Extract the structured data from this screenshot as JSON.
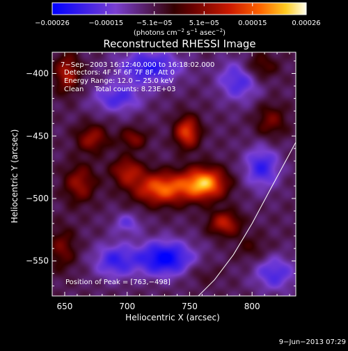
{
  "chart_data": {
    "type": "heatmap",
    "title": "Reconstructed RHESSI Image",
    "xlabel": "Heliocentric X (arcsec)",
    "ylabel": "Heliocentric Y (arcsec)",
    "xlim": [
      640,
      835
    ],
    "ylim": [
      -578,
      -383
    ],
    "x_ticks": [
      650,
      700,
      750,
      800
    ],
    "y_ticks": [
      -400,
      -450,
      -500,
      -550
    ],
    "x_tick_labels": [
      "650",
      "700",
      "750",
      "800"
    ],
    "y_tick_labels": [
      "−400",
      "−450",
      "−500",
      "−550"
    ],
    "colorbar": {
      "min": -0.00026,
      "max": 0.00026,
      "ticks": [
        -0.00026,
        -0.00015,
        -5.1e-05,
        5.1e-05,
        0.00015,
        0.00026
      ],
      "tick_labels": [
        "−0.00026",
        "−0.00015",
        "−5.1e−05",
        "5.1e−05",
        "0.00015",
        "0.00026"
      ],
      "unit_label": {
        "main": "(photons cm",
        "sup1": "−2",
        "mid1": " s",
        "sup2": "−1",
        "mid2": " asec",
        "sup3": "−2",
        "end": ")"
      }
    },
    "annotations": {
      "time_range": "7−Sep−2003 16:12:40.000 to 16:18:02.000",
      "detectors": "Detectors: 4F 5F 6F 7F 8F, Att 0",
      "energy_range": "Energy Range: 12.0 − 25.0 keV",
      "clean": "Clean     Total counts: 8.23E+03",
      "peak_position": "Position of Peak = [763,−498]"
    },
    "peak": {
      "x": 763,
      "y": -498
    },
    "limb_curve": [
      [
        757,
        -578
      ],
      [
        770,
        -565
      ],
      [
        785,
        -545
      ],
      [
        800,
        -520
      ],
      [
        815,
        -492
      ],
      [
        828,
        -468
      ],
      [
        835,
        -455
      ]
    ],
    "emission_sources": [
      {
        "x": 762,
        "y": -488,
        "amp": 0.00026,
        "sx": 12,
        "sy": 9
      },
      {
        "x": 728,
        "y": -492,
        "amp": 0.00022,
        "sx": 16,
        "sy": 9
      },
      {
        "x": 748,
        "y": -447,
        "amp": 0.00019,
        "sx": 7,
        "sy": 9
      },
      {
        "x": 700,
        "y": -478,
        "amp": 0.00013,
        "sx": 9,
        "sy": 8
      },
      {
        "x": 672,
        "y": -452,
        "amp": 0.00012,
        "sx": 9,
        "sy": 8
      },
      {
        "x": 662,
        "y": -488,
        "amp": 0.00012,
        "sx": 9,
        "sy": 11
      },
      {
        "x": 705,
        "y": -452,
        "amp": 0.0001,
        "sx": 8,
        "sy": 6
      },
      {
        "x": 778,
        "y": -520,
        "amp": 0.00015,
        "sx": 9,
        "sy": 7
      },
      {
        "x": 652,
        "y": -400,
        "amp": 0.00014,
        "sx": 7,
        "sy": 11
      },
      {
        "x": 648,
        "y": -540,
        "amp": 9e-05,
        "sx": 8,
        "sy": 12
      },
      {
        "x": 815,
        "y": -438,
        "amp": 9e-05,
        "sx": 9,
        "sy": 10
      },
      {
        "x": 805,
        "y": -395,
        "amp": 0.0001,
        "sx": 10,
        "sy": 8
      },
      {
        "x": 760,
        "y": -560,
        "amp": 4e-05,
        "sx": 10,
        "sy": 6
      },
      {
        "x": 800,
        "y": -540,
        "amp": 5e-05,
        "sx": 10,
        "sy": 8
      },
      {
        "x": 718,
        "y": -395,
        "amp": -0.00015,
        "sx": 18,
        "sy": 10
      },
      {
        "x": 692,
        "y": -420,
        "amp": -0.00012,
        "sx": 14,
        "sy": 8
      },
      {
        "x": 790,
        "y": -405,
        "amp": -0.00013,
        "sx": 12,
        "sy": 12
      },
      {
        "x": 730,
        "y": -548,
        "amp": -0.0002,
        "sx": 16,
        "sy": 10
      },
      {
        "x": 690,
        "y": -550,
        "amp": -0.00013,
        "sx": 12,
        "sy": 10
      },
      {
        "x": 808,
        "y": -475,
        "amp": -0.00014,
        "sx": 10,
        "sy": 12
      },
      {
        "x": 818,
        "y": -560,
        "amp": -0.00012,
        "sx": 12,
        "sy": 10
      },
      {
        "x": 700,
        "y": -520,
        "amp": -9e-05,
        "sx": 8,
        "sy": 6
      }
    ]
  },
  "footer": {
    "date_stamp": "9−Jun−2013 07:29"
  }
}
